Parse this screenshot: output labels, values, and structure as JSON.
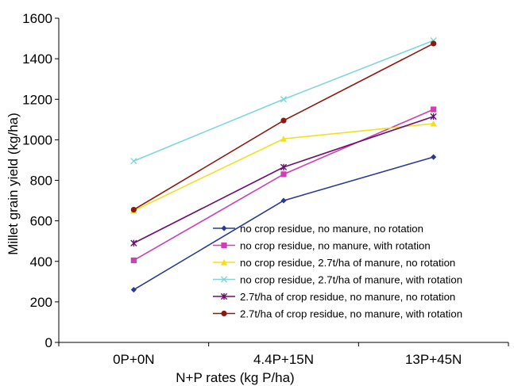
{
  "chart_data": {
    "type": "line",
    "xlabel": "N+P rates (kg P/ha)",
    "ylabel": "Millet grain yield (kg/ha)",
    "categories": [
      "0P+0N",
      "4.4P+15N",
      "13P+45N"
    ],
    "ylim": [
      0,
      1600
    ],
    "yticks": [
      0,
      200,
      400,
      600,
      800,
      1000,
      1200,
      1400,
      1600
    ],
    "grid": false,
    "legend_position": "bottom-right",
    "series": [
      {
        "name": "no crop residue, no manure, no rotation",
        "values": [
          260,
          700,
          915
        ],
        "color": "#2a3a8f",
        "marker": "diamond"
      },
      {
        "name": "no crop residue, no manure, with rotation",
        "values": [
          405,
          830,
          1150
        ],
        "color": "#cc3fb5",
        "marker": "square"
      },
      {
        "name": "no crop residue, 2.7t/ha of manure, no rotation",
        "values": [
          650,
          1005,
          1080
        ],
        "color": "#f0e020",
        "marker": "triangle"
      },
      {
        "name": "no crop residue, 2.7t/ha of manure, with rotation",
        "values": [
          895,
          1200,
          1490
        ],
        "color": "#7fd6d8",
        "marker": "x"
      },
      {
        "name": "2.7t/ha of  crop residue, no manure, no rotation",
        "values": [
          490,
          865,
          1115
        ],
        "color": "#6a0f6e",
        "marker": "star"
      },
      {
        "name": "2.7t/ha of  crop residue, no manure, with rotation",
        "values": [
          655,
          1095,
          1475
        ],
        "color": "#8a1a10",
        "marker": "circle"
      }
    ]
  }
}
